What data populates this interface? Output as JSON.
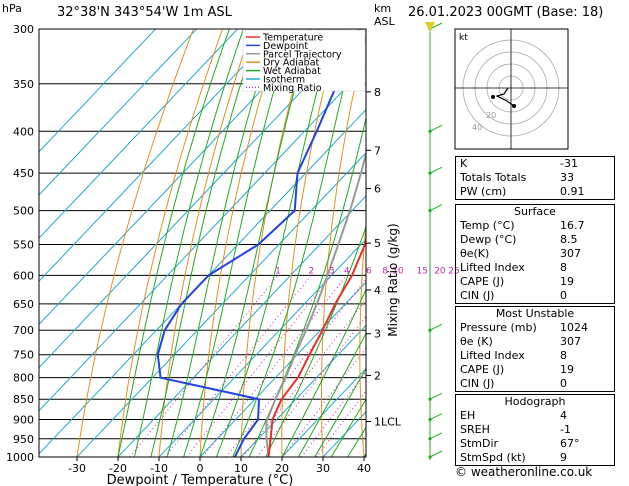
{
  "header": {
    "location": "32°38'N  343°54'W  1m  ASL",
    "datetime": "26.01.2023  00GMT  (Base: 18)",
    "hpa_label": "hPa",
    "km_label": "km",
    "asl_label": "ASL"
  },
  "chart_data": {
    "type": "skew-T log-P sounding",
    "xlabel": "Dewpoint / Temperature (°C)",
    "ylabel_right": "Mixing Ratio (g/kg)",
    "x_ticks": [
      -30,
      -20,
      -10,
      0,
      10,
      20,
      30,
      40
    ],
    "pressure_levels": [
      300,
      350,
      400,
      450,
      500,
      550,
      600,
      650,
      700,
      750,
      800,
      850,
      900,
      950,
      1000
    ],
    "km_ticks": [
      {
        "label": "8",
        "p": 358
      },
      {
        "label": "7",
        "p": 422
      },
      {
        "label": "6",
        "p": 470
      },
      {
        "label": "5",
        "p": 548
      },
      {
        "label": "4",
        "p": 625
      },
      {
        "label": "3",
        "p": 707
      },
      {
        "label": "2",
        "p": 795
      },
      {
        "label": "1LCL",
        "p": 905
      }
    ],
    "mixing_ratio_labels": [
      "1",
      "2",
      "3",
      "4",
      "6",
      "8",
      "10",
      "15",
      "20",
      "25"
    ],
    "mixing_ratio_values": [
      1,
      2,
      3,
      4,
      6,
      8,
      10,
      15,
      20,
      25
    ],
    "legend": [
      {
        "name": "Temperature",
        "color": "#e8302a",
        "style": "solid"
      },
      {
        "name": "Dewpoint",
        "color": "#2244dd",
        "style": "solid"
      },
      {
        "name": "Parcel Trajectory",
        "color": "#999999",
        "style": "solid"
      },
      {
        "name": "Dry Adiabat",
        "color": "#e09020",
        "style": "solid"
      },
      {
        "name": "Wet Adiabat",
        "color": "#22aa22",
        "style": "solid"
      },
      {
        "name": "Isotherm",
        "color": "#22aacc",
        "style": "solid"
      },
      {
        "name": "Mixing Ratio",
        "color": "#cc22aa",
        "style": "dotted"
      }
    ],
    "temperature": [
      {
        "p": 1000,
        "t": 16.7
      },
      {
        "p": 950,
        "t": 13.0
      },
      {
        "p": 900,
        "t": 9.0
      },
      {
        "p": 850,
        "t": 6.5
      },
      {
        "p": 800,
        "t": 5.5
      },
      {
        "p": 750,
        "t": 3.0
      },
      {
        "p": 700,
        "t": 0.5
      },
      {
        "p": 650,
        "t": -2.5
      },
      {
        "p": 600,
        "t": -5.0
      },
      {
        "p": 550,
        "t": -9.0
      },
      {
        "p": 500,
        "t": -14.5
      },
      {
        "p": 450,
        "t": -19.5
      },
      {
        "p": 400,
        "t": -26.0
      },
      {
        "p": 350,
        "t": -33.5
      },
      {
        "p": 300,
        "t": -41.0
      }
    ],
    "dewpoint": [
      {
        "p": 1000,
        "t": 8.5
      },
      {
        "p": 950,
        "t": 6.5
      },
      {
        "p": 900,
        "t": 5.5
      },
      {
        "p": 850,
        "t": 1.0
      },
      {
        "p": 800,
        "t": -28.0
      },
      {
        "p": 750,
        "t": -34.0
      },
      {
        "p": 700,
        "t": -38.0
      },
      {
        "p": 650,
        "t": -40.0
      },
      {
        "p": 600,
        "t": -40.0
      },
      {
        "p": 550,
        "t": -35.0
      },
      {
        "p": 500,
        "t": -34.0
      },
      {
        "p": 450,
        "t": -42.0
      },
      {
        "p": 400,
        "t": -47.0
      },
      {
        "p": 350,
        "t": -53.0
      },
      {
        "p": 300,
        "t": -60.0
      }
    ],
    "parcel": [
      {
        "p": 1000,
        "t": 16.7
      },
      {
        "p": 950,
        "t": 12.0
      },
      {
        "p": 905,
        "t": 8.0
      },
      {
        "p": 850,
        "t": 5.0
      },
      {
        "p": 800,
        "t": 2.5
      },
      {
        "p": 750,
        "t": -0.5
      },
      {
        "p": 700,
        "t": -3.5
      },
      {
        "p": 650,
        "t": -7.0
      },
      {
        "p": 600,
        "t": -11.0
      },
      {
        "p": 550,
        "t": -15.5
      },
      {
        "p": 500,
        "t": -20.5
      },
      {
        "p": 450,
        "t": -26.5
      },
      {
        "p": 400,
        "t": -33.5
      },
      {
        "p": 350,
        "t": -41.5
      },
      {
        "p": 300,
        "t": -50.0
      }
    ],
    "wind_barbs_p": [
      1000,
      950,
      900,
      850,
      700,
      500,
      450,
      400,
      300
    ]
  },
  "hodograph": {
    "label": "kt",
    "ring_labels": [
      "40",
      "20"
    ]
  },
  "indices": [
    {
      "label": "K",
      "value": "-31"
    },
    {
      "label": "Totals Totals",
      "value": "33"
    },
    {
      "label": "PW (cm)",
      "value": "0.91"
    }
  ],
  "surface": {
    "title": "Surface",
    "rows": [
      {
        "label": "Temp (°C)",
        "value": "16.7"
      },
      {
        "label": "Dewp (°C)",
        "value": "8.5"
      },
      {
        "label": "θe(K)",
        "value": "307"
      },
      {
        "label": "Lifted Index",
        "value": "8"
      },
      {
        "label": "CAPE (J)",
        "value": "19"
      },
      {
        "label": "CIN (J)",
        "value": "0"
      }
    ]
  },
  "most_unstable": {
    "title": "Most Unstable",
    "rows": [
      {
        "label": "Pressure (mb)",
        "value": "1024"
      },
      {
        "label": "θe (K)",
        "value": "307"
      },
      {
        "label": "Lifted Index",
        "value": "8"
      },
      {
        "label": "CAPE (J)",
        "value": "19"
      },
      {
        "label": "CIN (J)",
        "value": "0"
      }
    ]
  },
  "hodograph_table": {
    "title": "Hodograph",
    "rows": [
      {
        "label": "EH",
        "value": "4"
      },
      {
        "label": "SREH",
        "value": "-1"
      },
      {
        "label": "StmDir",
        "value": "67°"
      },
      {
        "label": "StmSpd (kt)",
        "value": "9"
      }
    ]
  },
  "watermark": "© weatheronline.co.uk"
}
